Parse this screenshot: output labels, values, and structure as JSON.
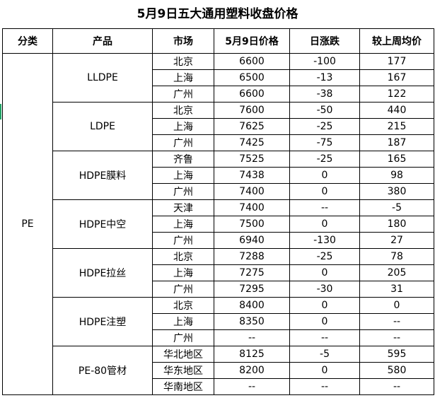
{
  "title": "5月9日五大通用塑料收盘价格",
  "headers": [
    "分类",
    "产品",
    "市场",
    "5月9日价格",
    "日涨跌",
    "较上周均价"
  ],
  "category": "PE",
  "groups": [
    {
      "product": "LLDPE",
      "rows": [
        [
          "北京",
          "6600",
          "-100",
          "177"
        ],
        [
          "上海",
          "6500",
          "-13",
          "167"
        ],
        [
          "广州",
          "6600",
          "-38",
          "122"
        ]
      ]
    },
    {
      "product": "LDPE",
      "rows": [
        [
          "北京",
          "7600",
          "-50",
          "440"
        ],
        [
          "上海",
          "7625",
          "-25",
          "215"
        ],
        [
          "广州",
          "7425",
          "-75",
          "187"
        ]
      ]
    },
    {
      "product": "HDPE膜料",
      "rows": [
        [
          "齐鲁",
          "7525",
          "-25",
          "165"
        ],
        [
          "上海",
          "7438",
          "0",
          "98"
        ],
        [
          "广州",
          "7400",
          "0",
          "380"
        ]
      ]
    },
    {
      "product": "HDPE中空",
      "rows": [
        [
          "天津",
          "7400",
          "--",
          "-5"
        ],
        [
          "上海",
          "7500",
          "0",
          "180"
        ],
        [
          "广州",
          "6940",
          "-130",
          "27"
        ]
      ]
    },
    {
      "product": "HDPE拉丝",
      "rows": [
        [
          "北京",
          "7288",
          "-25",
          "78"
        ],
        [
          "上海",
          "7275",
          "0",
          "205"
        ],
        [
          "广州",
          "7295",
          "-30",
          "31"
        ]
      ]
    },
    {
      "product": "HDPE注塑",
      "rows": [
        [
          "北京",
          "8400",
          "0",
          "0"
        ],
        [
          "上海",
          "8350",
          "0",
          "--"
        ],
        [
          "广州",
          "--",
          "--",
          "--"
        ]
      ]
    },
    {
      "product": "PE-80管材",
      "rows": [
        [
          "华北地区",
          "8125",
          "-5",
          "595"
        ],
        [
          "华东地区",
          "8200",
          "0",
          "580"
        ],
        [
          "华南地区",
          "--",
          "--",
          "--"
        ]
      ]
    }
  ]
}
